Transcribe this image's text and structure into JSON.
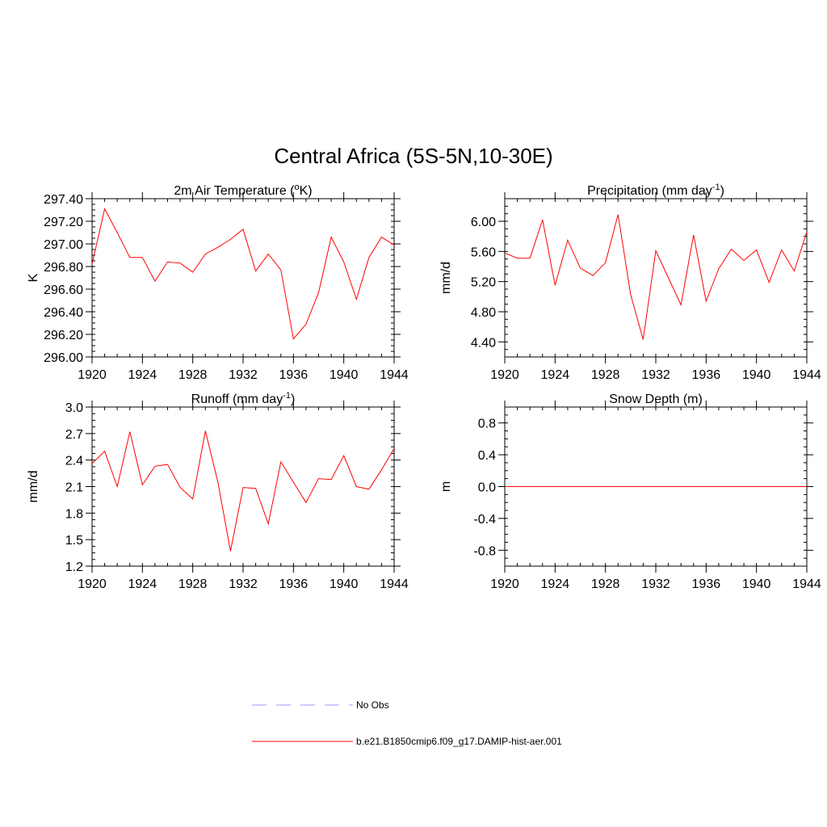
{
  "title": "Central Africa (5S-5N,10-30E)",
  "colors": {
    "model": "#ff0000",
    "obs": "#9999ff",
    "axis": "#000000"
  },
  "legend": {
    "entries": [
      {
        "label": "No Obs",
        "style": "dashed",
        "color": "#9999ff"
      },
      {
        "label": "b.e21.B1850cmip6.f09_g17.DAMIP-hist-aer.001",
        "style": "solid",
        "color": "#ff0000"
      }
    ]
  },
  "chart_data": [
    {
      "type": "line",
      "title": "2m Air Temperature (",
      "title_sup": "o",
      "title_after": "K)",
      "ylabel": "K",
      "xlim": [
        1920,
        1944
      ],
      "ylim": [
        296.0,
        297.4
      ],
      "xticks": [
        1920,
        1924,
        1928,
        1932,
        1936,
        1940,
        1944
      ],
      "yticks": [
        "296.00",
        "296.20",
        "296.40",
        "296.60",
        "296.80",
        "297.00",
        "297.20",
        "297.40"
      ],
      "x": [
        1920,
        1921,
        1922,
        1923,
        1924,
        1925,
        1926,
        1927,
        1928,
        1929,
        1930,
        1931,
        1932,
        1933,
        1934,
        1935,
        1936,
        1937,
        1938,
        1939,
        1940,
        1941,
        1942,
        1943,
        1944
      ],
      "series": [
        {
          "values": [
            296.82,
            297.31,
            297.1,
            296.88,
            296.88,
            296.67,
            296.84,
            296.83,
            296.75,
            296.91,
            296.97,
            297.04,
            297.13,
            296.76,
            296.91,
            296.77,
            296.16,
            296.29,
            296.57,
            297.06,
            296.84,
            296.51,
            296.88,
            297.06,
            296.99
          ]
        }
      ]
    },
    {
      "type": "line",
      "title": "Precipitation (mm day",
      "title_sup": "-1",
      "title_after": ")",
      "ylabel": "mm/d",
      "xlim": [
        1920,
        1944
      ],
      "ylim": [
        4.2,
        6.3
      ],
      "xticks": [
        1920,
        1924,
        1928,
        1932,
        1936,
        1940,
        1944
      ],
      "yticks": [
        "4.40",
        "4.80",
        "5.20",
        "5.60",
        "6.00"
      ],
      "x": [
        1920,
        1921,
        1922,
        1923,
        1924,
        1925,
        1926,
        1927,
        1928,
        1929,
        1930,
        1931,
        1932,
        1933,
        1934,
        1935,
        1936,
        1937,
        1938,
        1939,
        1940,
        1941,
        1942,
        1943,
        1944
      ],
      "series": [
        {
          "values": [
            5.58,
            5.51,
            5.51,
            6.02,
            5.15,
            5.75,
            5.38,
            5.28,
            5.45,
            6.09,
            5.03,
            4.43,
            5.61,
            5.25,
            4.89,
            5.82,
            4.94,
            5.37,
            5.63,
            5.48,
            5.62,
            5.19,
            5.62,
            5.34,
            5.86
          ]
        }
      ]
    },
    {
      "type": "line",
      "title": "Runoff (mm day",
      "title_sup": "-1",
      "title_after": ")",
      "ylabel": "mm/d",
      "xlim": [
        1920,
        1944
      ],
      "ylim": [
        1.2,
        3.0
      ],
      "xticks": [
        1920,
        1924,
        1928,
        1932,
        1936,
        1940,
        1944
      ],
      "yticks": [
        "1.2",
        "1.5",
        "1.8",
        "2.1",
        "2.4",
        "2.7",
        "3.0"
      ],
      "x": [
        1920,
        1921,
        1922,
        1923,
        1924,
        1925,
        1926,
        1927,
        1928,
        1929,
        1930,
        1931,
        1932,
        1933,
        1934,
        1935,
        1936,
        1937,
        1938,
        1939,
        1940,
        1941,
        1942,
        1943,
        1944
      ],
      "series": [
        {
          "values": [
            2.36,
            2.5,
            2.1,
            2.72,
            2.12,
            2.33,
            2.35,
            2.09,
            1.96,
            2.73,
            2.15,
            1.37,
            2.09,
            2.08,
            1.68,
            2.38,
            2.15,
            1.92,
            2.19,
            2.18,
            2.45,
            2.1,
            2.07,
            2.29,
            2.53
          ]
        }
      ]
    },
    {
      "type": "line",
      "title": "Snow Depth (m)",
      "title_sup": "",
      "title_after": "",
      "ylabel": "m",
      "xlim": [
        1920,
        1944
      ],
      "ylim": [
        -1.0,
        1.0
      ],
      "xticks": [
        1920,
        1924,
        1928,
        1932,
        1936,
        1940,
        1944
      ],
      "yticks": [
        "-0.8",
        "-0.4",
        "0.0",
        "0.4",
        "0.8"
      ],
      "x": [
        1920,
        1921,
        1922,
        1923,
        1924,
        1925,
        1926,
        1927,
        1928,
        1929,
        1930,
        1931,
        1932,
        1933,
        1934,
        1935,
        1936,
        1937,
        1938,
        1939,
        1940,
        1941,
        1942,
        1943,
        1944
      ],
      "series": [
        {
          "values": [
            0,
            0,
            0,
            0,
            0,
            0,
            0,
            0,
            0,
            0,
            0,
            0,
            0,
            0,
            0,
            0,
            0,
            0,
            0,
            0,
            0,
            0,
            0,
            0,
            0
          ]
        }
      ]
    }
  ]
}
